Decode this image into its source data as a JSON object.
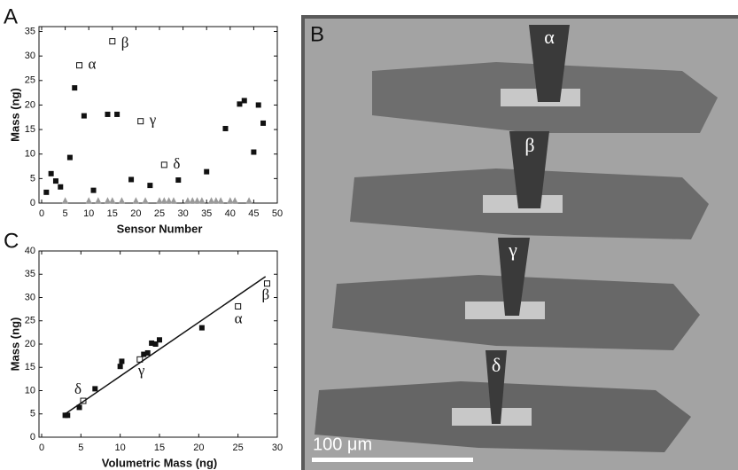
{
  "chart_data": [
    {
      "type": "scatter",
      "panel_label": "A",
      "x_label": "Sensor Number",
      "y_label": "Mass (ng)",
      "xlim": [
        0,
        50
      ],
      "xticks": [
        0,
        5,
        10,
        15,
        20,
        25,
        30,
        35,
        40,
        45,
        50
      ],
      "ylim": [
        0,
        36
      ],
      "yticks": [
        0,
        5,
        10,
        15,
        20,
        25,
        30,
        35
      ],
      "grid": false,
      "series": [
        {
          "marker": "square-filled",
          "color": "#111111",
          "x": [
            1,
            2,
            3,
            4,
            6,
            7,
            9,
            11,
            14,
            16,
            19,
            23,
            29,
            35,
            39,
            42,
            43,
            45,
            46,
            47
          ],
          "values": [
            2.2,
            6,
            4.5,
            3.3,
            9.3,
            23.5,
            17.8,
            2.6,
            18.1,
            18.1,
            4.8,
            3.6,
            4.7,
            6.4,
            15.2,
            20.2,
            20.9,
            10.4,
            20,
            16.3
          ]
        },
        {
          "marker": "square-open",
          "color": "#111111",
          "x": [
            8,
            15,
            21,
            26
          ],
          "values": [
            28.1,
            33,
            16.7,
            7.8
          ]
        },
        {
          "marker": "triangle",
          "color": "#9a9a9a",
          "x": [
            5,
            10,
            12,
            14,
            15,
            17,
            20,
            22,
            25,
            26,
            27,
            28,
            31,
            32,
            33,
            34,
            36,
            37,
            38,
            40,
            41,
            44
          ],
          "values": [
            0.5,
            0.5,
            0.5,
            0.5,
            0.5,
            0.5,
            0.5,
            0.5,
            0.5,
            0.5,
            0.5,
            0.5,
            0.5,
            0.5,
            0.5,
            0.5,
            0.5,
            0.5,
            0.5,
            0.5,
            0.5,
            0.5
          ]
        }
      ],
      "annotations": [
        "α",
        "β",
        "γ",
        "δ"
      ]
    },
    {
      "type": "scatter",
      "panel_label": "C",
      "x_label": "Volumetric Mass (ng)",
      "y_label": "Mass (ng)",
      "xlim": [
        0,
        30
      ],
      "xticks": [
        0,
        5,
        10,
        15,
        20,
        25,
        30
      ],
      "ylim": [
        0,
        40
      ],
      "yticks": [
        0,
        5,
        10,
        15,
        20,
        25,
        30,
        35,
        40
      ],
      "grid": false,
      "series": [
        {
          "marker": "square-filled",
          "color": "#111111",
          "x": [
            3,
            3.3,
            4.8,
            6.8,
            10,
            10.2,
            13,
            13.5,
            14,
            14.5,
            15,
            20.4
          ],
          "values": [
            4.7,
            4.7,
            6.4,
            10.4,
            15.2,
            16.3,
            17.8,
            18.1,
            20.2,
            20,
            20.9,
            23.5
          ]
        },
        {
          "marker": "square-open",
          "color": "#111111",
          "x": [
            25,
            28.7,
            12.5,
            5.3
          ],
          "values": [
            28.1,
            33,
            16.7,
            7.8
          ]
        },
        {
          "marker": "line",
          "color": "#111111",
          "x": [
            3,
            28.5
          ],
          "values": [
            5,
            34.5
          ]
        }
      ],
      "annotations": [
        "α",
        "β",
        "γ",
        "δ"
      ]
    }
  ],
  "image": {
    "panel_label": "B",
    "labels": [
      "α",
      "β",
      "γ",
      "δ"
    ],
    "scale_bar": "100 μm"
  }
}
